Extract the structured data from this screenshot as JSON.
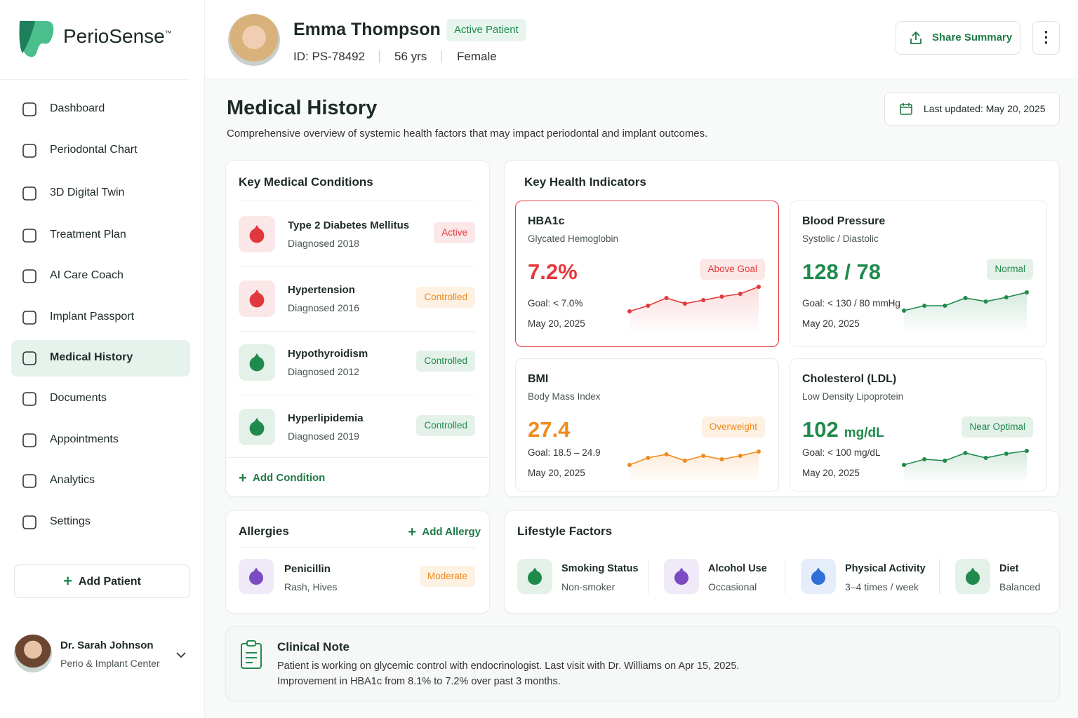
{
  "sidebar": {
    "brand": "PerioSense",
    "trademark": "™",
    "nav": [
      "Dashboard",
      "Periodontal Chart",
      "3D Digital Twin",
      "Treatment Plan",
      "AI Care Coach",
      "Implant Passport",
      "Medical History",
      "Documents",
      "Appointments",
      "Analytics",
      "Settings"
    ],
    "add_patient": "Add Patient",
    "user": {
      "name": "Dr. Sarah Johnson",
      "org": "Perio & Implant Center"
    }
  },
  "header": {
    "patient_name": "Emma Thompson",
    "status": "Active Patient",
    "id": "ID: PS-78492",
    "age": "56 yrs",
    "sex": "Female",
    "share": "Share Summary"
  },
  "page": {
    "title": "Medical History",
    "subtitle": "Comprehensive overview of systemic health factors that may impact periodontal and implant outcomes.",
    "last_updated": "Last updated: May 20, 2025"
  },
  "conditions": {
    "title": "Key Medical Conditions",
    "items": [
      {
        "name": "Type 2 Diabetes Mellitus",
        "diagnosed": "Diagnosed 2018",
        "status": "Active",
        "color": "#e0383e"
      },
      {
        "name": "Hypertension",
        "diagnosed": "Diagnosed 2016",
        "status": "Controlled",
        "color": "#f08a1c"
      },
      {
        "name": "Hypothyroidism",
        "diagnosed": "Diagnosed 2012",
        "status": "Controlled",
        "color": "#1f8a4c"
      },
      {
        "name": "Hyperlipidemia",
        "diagnosed": "Diagnosed 2019",
        "status": "Controlled",
        "color": "#1f8a4c"
      }
    ],
    "add": "Add Condition"
  },
  "indicators": {
    "title": "Key Health Indicators",
    "cards": [
      {
        "name": "HBA1c",
        "subtitle": "Glycated Hemoglobin",
        "value": "7.2%",
        "status": "Above Goal",
        "goal": "Goal: < 7.0%",
        "date": "May 20, 2025",
        "color": "#e5383b",
        "highlight": true,
        "trend": [
          18,
          26,
          37,
          29,
          34,
          39,
          43,
          53
        ]
      },
      {
        "name": "Blood Pressure",
        "subtitle": "Systolic / Diastolic",
        "value": "128 / 78",
        "status": "Normal",
        "goal": "Goal: < 130 / 80 mmHg",
        "date": "May 20, 2025",
        "color": "#1f8a4c",
        "highlight": false,
        "trend": [
          19,
          26,
          26,
          37,
          32,
          38,
          45
        ]
      },
      {
        "name": "BMI",
        "subtitle": "Body Mass Index",
        "value": "27.4",
        "status": "Overweight",
        "goal": "Goal: 18.5 – 24.9",
        "date": "May 20, 2025",
        "color": "#f08a1c",
        "highlight": false,
        "trend": [
          12,
          22,
          27,
          18,
          25,
          20,
          25,
          31
        ]
      },
      {
        "name": "Cholesterol (LDL)",
        "subtitle": "Low Density Lipoprotein",
        "value": "102",
        "unit": "mg/dL",
        "status": "Near Optimal",
        "goal": "Goal: < 100 mg/dL",
        "date": "May 20, 2025",
        "color": "#1f8a4c",
        "highlight": false,
        "trend": [
          12,
          20,
          18,
          29,
          22,
          28,
          32
        ]
      }
    ]
  },
  "allergies": {
    "title": "Allergies",
    "add": "Add Allergy",
    "items": [
      {
        "name": "Penicillin",
        "reaction": "Rash, Hives",
        "severity": "Moderate",
        "color": "#f08a1c"
      }
    ]
  },
  "lifestyle": {
    "title": "Lifestyle Factors",
    "items": [
      {
        "label": "Smoking Status",
        "value": "Non-smoker",
        "color": "#1f8a4c"
      },
      {
        "label": "Alcohol Use",
        "value": "Occasional",
        "color": "#7b4bc4"
      },
      {
        "label": "Physical Activity",
        "value": "3–4 times / week",
        "color": "#2f6fd6"
      },
      {
        "label": "Diet",
        "value": "Balanced",
        "color": "#1f8a4c"
      }
    ]
  },
  "clinical_note": {
    "title": "Clinical Note",
    "lines": [
      "Patient is working on glycemic control with endocrinologist. Last visit with Dr. Williams on Apr 15, 2025.",
      "Improvement in HBA1c from 8.1% to 7.2% over past 3 months."
    ]
  }
}
